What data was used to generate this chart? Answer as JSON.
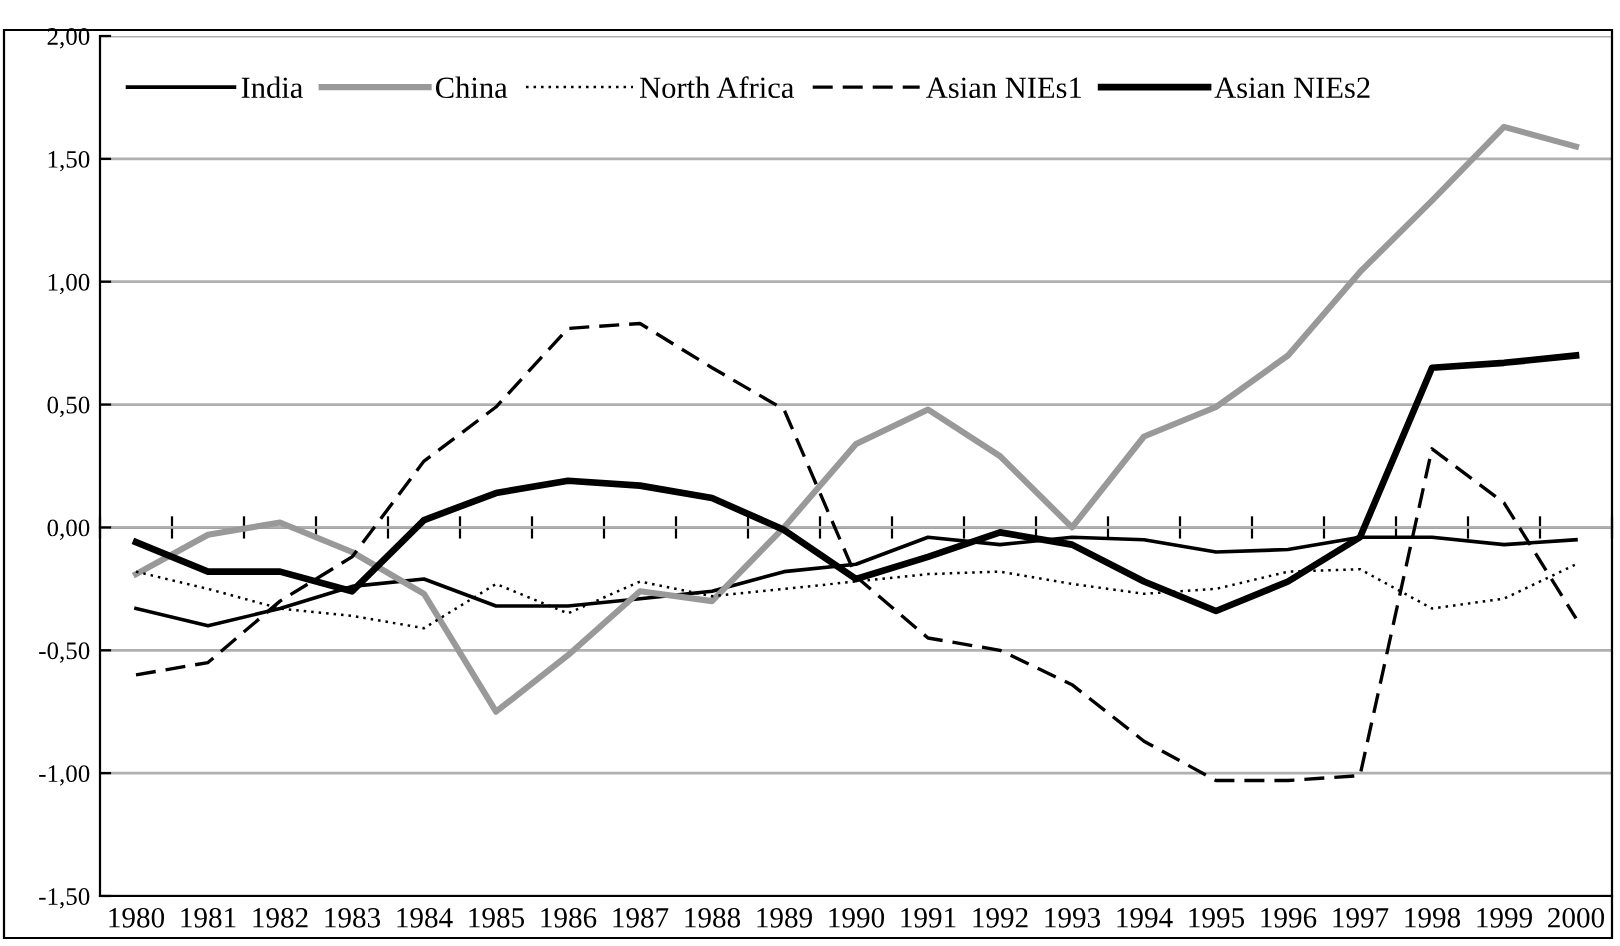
{
  "chart_data": {
    "type": "line",
    "categories": [
      "1980",
      "1981",
      "1982",
      "1983",
      "1984",
      "1985",
      "1986",
      "1987",
      "1988",
      "1989",
      "1990",
      "1991",
      "1992",
      "1993",
      "1994",
      "1995",
      "1996",
      "1997",
      "1998",
      "1999",
      "2000"
    ],
    "series": [
      {
        "name": "India",
        "color": "#000000",
        "line_style": "solid",
        "values": [
          -0.33,
          -0.4,
          -0.33,
          -0.24,
          -0.21,
          -0.32,
          -0.32,
          -0.29,
          -0.26,
          -0.18,
          -0.15,
          -0.04,
          -0.07,
          -0.04,
          -0.05,
          -0.1,
          -0.09,
          -0.04,
          -0.04,
          -0.07,
          -0.05
        ]
      },
      {
        "name": "China",
        "color": "#999999",
        "line_style": "solid",
        "values": [
          -0.19,
          -0.03,
          0.02,
          -0.1,
          -0.27,
          -0.75,
          -0.52,
          -0.26,
          -0.3,
          0.0,
          0.34,
          0.48,
          0.29,
          0.0,
          0.37,
          0.49,
          0.7,
          1.04,
          1.33,
          1.63,
          1.55
        ]
      },
      {
        "name": "North Africa",
        "color": "#000000",
        "line_style": "dotted",
        "values": [
          -0.18,
          -0.25,
          -0.33,
          -0.36,
          -0.41,
          -0.23,
          -0.35,
          -0.22,
          -0.28,
          -0.25,
          -0.22,
          -0.19,
          -0.18,
          -0.23,
          -0.27,
          -0.25,
          -0.18,
          -0.17,
          -0.33,
          -0.29,
          -0.15
        ]
      },
      {
        "name": "Asian NIEs1",
        "color": "#000000",
        "line_style": "dashed",
        "values": [
          -0.6,
          -0.55,
          -0.3,
          -0.12,
          0.27,
          0.49,
          0.81,
          0.83,
          0.65,
          0.48,
          -0.2,
          -0.45,
          -0.5,
          -0.64,
          -0.87,
          -1.03,
          -1.03,
          -1.01,
          0.32,
          0.1,
          -0.37
        ]
      },
      {
        "name": "Asian NIEs2",
        "color": "#000000",
        "line_style": "solid",
        "values": [
          -0.06,
          -0.18,
          -0.18,
          -0.26,
          0.03,
          0.14,
          0.19,
          0.17,
          0.12,
          -0.01,
          -0.21,
          -0.12,
          -0.02,
          -0.07,
          -0.22,
          -0.34,
          -0.22,
          -0.04,
          0.65,
          0.67,
          0.7
        ]
      }
    ],
    "ylim": [
      -1.5,
      2.0
    ],
    "yticks": [
      {
        "value": -1.5,
        "label": "-1,50"
      },
      {
        "value": -1.0,
        "label": "-1,00"
      },
      {
        "value": -0.5,
        "label": "-0,50"
      },
      {
        "value": 0,
        "label": "0,00"
      },
      {
        "value": 0.5,
        "label": "0,50"
      },
      {
        "value": 1.0,
        "label": "1,00"
      },
      {
        "value": 1.5,
        "label": "1,50"
      },
      {
        "value": 2.0,
        "label": "2,00"
      }
    ],
    "grid": "y",
    "legend": "top left",
    "marker": "none"
  }
}
